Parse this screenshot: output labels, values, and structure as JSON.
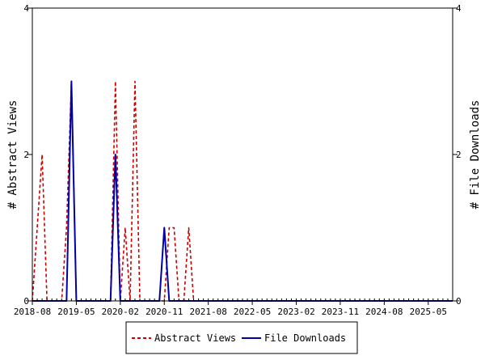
{
  "chart_data": {
    "type": "line",
    "ylabel_left": "# Abstract Views",
    "ylabel_right": "# File Downloads",
    "xlim": [
      "2018-08",
      "2025-10"
    ],
    "ylim_left": [
      0,
      4
    ],
    "ylim_right": [
      0,
      4
    ],
    "y_ticks": [
      0,
      2,
      4
    ],
    "y_ticks_right": [
      0,
      2,
      4
    ],
    "x_tick_labels": [
      "2018-08",
      "2019-05",
      "2020-02",
      "2020-11",
      "2021-08",
      "2022-05",
      "2023-02",
      "2023-11",
      "2024-08",
      "2025-05"
    ],
    "legend_position": "bottom-center",
    "series": [
      {
        "name": "Abstract Views",
        "color": "#cc0000",
        "style": "dashed",
        "axis": "left",
        "points": [
          [
            "2018-08",
            0
          ],
          [
            "2018-09",
            1
          ],
          [
            "2018-10",
            2
          ],
          [
            "2018-11",
            0
          ],
          [
            "2018-12",
            0
          ],
          [
            "2019-02",
            0
          ],
          [
            "2019-03",
            1
          ],
          [
            "2019-04",
            3
          ],
          [
            "2019-05",
            0
          ],
          [
            "2019-12",
            0
          ],
          [
            "2020-01",
            3
          ],
          [
            "2020-02",
            0
          ],
          [
            "2020-03",
            1
          ],
          [
            "2020-04",
            0
          ],
          [
            "2020-05",
            3
          ],
          [
            "2020-06",
            0
          ],
          [
            "2020-11",
            0
          ],
          [
            "2020-12",
            1
          ],
          [
            "2021-01",
            1
          ],
          [
            "2021-02",
            0
          ],
          [
            "2021-03",
            0
          ],
          [
            "2021-04",
            1
          ],
          [
            "2021-05",
            0
          ],
          [
            "2025-10",
            0
          ]
        ]
      },
      {
        "name": "File Downloads",
        "color": "#0000aa",
        "style": "solid",
        "axis": "right",
        "points": [
          [
            "2018-08",
            0
          ],
          [
            "2019-03",
            0
          ],
          [
            "2019-04",
            3
          ],
          [
            "2019-05",
            0
          ],
          [
            "2019-12",
            0
          ],
          [
            "2020-01",
            2
          ],
          [
            "2020-02",
            0
          ],
          [
            "2020-10",
            0
          ],
          [
            "2020-11",
            1
          ],
          [
            "2020-12",
            0
          ],
          [
            "2025-10",
            0
          ]
        ]
      }
    ]
  }
}
